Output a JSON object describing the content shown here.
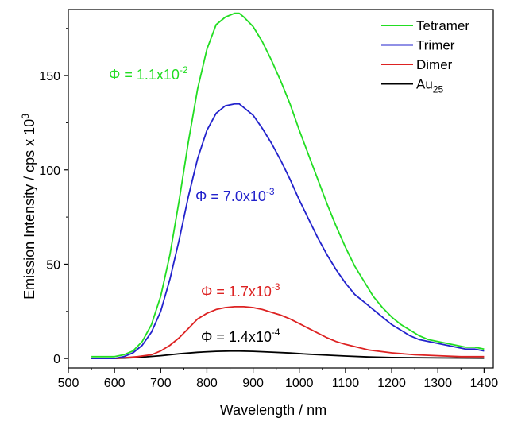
{
  "chart_data": {
    "type": "line",
    "xlabel": "Wavelength / nm",
    "ylabel": "Emission Intensity / cps x 10",
    "ylabel_sup": "3",
    "xlim": [
      500,
      1420
    ],
    "ylim": [
      -5,
      185
    ],
    "xticks": [
      500,
      600,
      700,
      800,
      900,
      1000,
      1100,
      1200,
      1300,
      1400
    ],
    "yticks": [
      0,
      50,
      100,
      150
    ],
    "grid": false,
    "legend_position": "top-right",
    "series": [
      {
        "name": "Tetramer",
        "color": "#22dd22",
        "x": [
          550,
          600,
          620,
          640,
          660,
          680,
          700,
          720,
          740,
          760,
          780,
          800,
          820,
          840,
          860,
          870,
          880,
          900,
          920,
          940,
          960,
          980,
          1000,
          1020,
          1040,
          1060,
          1080,
          1100,
          1120,
          1140,
          1155,
          1160,
          1180,
          1200,
          1220,
          1240,
          1260,
          1280,
          1300,
          1320,
          1340,
          1360,
          1380,
          1400
        ],
        "y": [
          1,
          1,
          2,
          4,
          9,
          18,
          33,
          55,
          84,
          115,
          143,
          164,
          177,
          181,
          183,
          183,
          181,
          176,
          168,
          158,
          147,
          135,
          121,
          108,
          95,
          82,
          70,
          59,
          49,
          41,
          35,
          33,
          27,
          22,
          18,
          15,
          12,
          10,
          9,
          8,
          7,
          6,
          6,
          5
        ]
      },
      {
        "name": "Trimer",
        "color": "#2222cc",
        "x": [
          550,
          600,
          620,
          640,
          660,
          680,
          700,
          720,
          740,
          760,
          780,
          800,
          820,
          840,
          860,
          870,
          880,
          900,
          920,
          940,
          960,
          980,
          1000,
          1020,
          1040,
          1060,
          1080,
          1100,
          1120,
          1140,
          1160,
          1180,
          1200,
          1220,
          1240,
          1260,
          1280,
          1300,
          1320,
          1340,
          1360,
          1380,
          1400
        ],
        "y": [
          0,
          0,
          1,
          3,
          7,
          14,
          25,
          42,
          63,
          86,
          106,
          121,
          130,
          134,
          135,
          135,
          133,
          129,
          122,
          114,
          105,
          95,
          84,
          74,
          64,
          55,
          47,
          40,
          34,
          30,
          26,
          22,
          18,
          15,
          12,
          10,
          9,
          8,
          7,
          6,
          5,
          5,
          4
        ]
      },
      {
        "name": "Dimer",
        "color": "#dd2222",
        "x": [
          550,
          600,
          650,
          680,
          700,
          720,
          740,
          760,
          780,
          800,
          820,
          840,
          860,
          880,
          900,
          920,
          940,
          960,
          980,
          1000,
          1020,
          1040,
          1060,
          1080,
          1100,
          1150,
          1200,
          1250,
          1300,
          1350,
          1400
        ],
        "y": [
          0,
          0,
          1,
          2,
          4,
          7,
          11,
          16,
          21,
          24,
          26,
          27,
          27.5,
          27.5,
          27,
          26,
          24.5,
          23,
          21,
          18.5,
          16,
          13.5,
          11,
          9,
          7.5,
          4.5,
          3,
          2,
          1.5,
          1,
          1
        ]
      },
      {
        "name": "Au25",
        "name_display": "Au",
        "name_sub": "25",
        "color": "#000000",
        "x": [
          550,
          600,
          650,
          700,
          740,
          780,
          820,
          860,
          900,
          940,
          980,
          1020,
          1060,
          1100,
          1150,
          1200,
          1300,
          1400
        ],
        "y": [
          0,
          0,
          0.5,
          1.5,
          2.5,
          3.3,
          3.8,
          4,
          3.8,
          3.4,
          2.9,
          2.3,
          1.8,
          1.3,
          0.8,
          0.5,
          0.3,
          0.2
        ]
      }
    ],
    "annotations": [
      {
        "text": "Φ = 1.1x10",
        "sup": "-2",
        "color": "#22dd22"
      },
      {
        "text": "Φ = 7.0x10",
        "sup": "-3",
        "color": "#2222cc"
      },
      {
        "text": "Φ = 1.7x10",
        "sup": "-3",
        "color": "#dd2222"
      },
      {
        "text": "Φ = 1.4x10",
        "sup": "-4",
        "color": "#000000"
      }
    ]
  }
}
